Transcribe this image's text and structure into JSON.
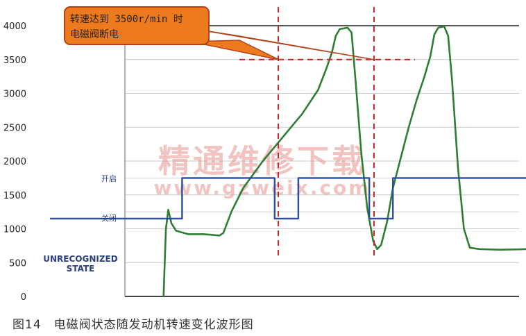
{
  "chart_data": {
    "type": "line",
    "caption": "图14　电磁阀状态随发动机转速变化波形图",
    "y_ticks": [
      0,
      500,
      1000,
      1500,
      2000,
      2500,
      3000,
      3500,
      4000
    ],
    "ylim": [
      0,
      4000
    ],
    "callout": {
      "line1": "转速达到 3500r/min 时",
      "line2": "电磁阀断电"
    },
    "state_labels": {
      "on": "开启",
      "off": "关闭",
      "unrecognized_line1": "UNRECOGNIZED",
      "unrecognized_line2": "STATE"
    },
    "watermark": {
      "line1": "精通维修下载",
      "line2": "www.gzweix.com"
    },
    "threshold_value": 3500,
    "series": [
      {
        "kind": "rpm",
        "color": "#2f7d32",
        "points": [
          [
            0.098,
            0
          ],
          [
            0.104,
            1000
          ],
          [
            0.11,
            1280
          ],
          [
            0.118,
            1080
          ],
          [
            0.13,
            970
          ],
          [
            0.16,
            920
          ],
          [
            0.2,
            920
          ],
          [
            0.24,
            900
          ],
          [
            0.25,
            940
          ],
          [
            0.27,
            1250
          ],
          [
            0.3,
            1600
          ],
          [
            0.35,
            2000
          ],
          [
            0.4,
            2350
          ],
          [
            0.45,
            2700
          ],
          [
            0.49,
            3050
          ],
          [
            0.51,
            3350
          ],
          [
            0.525,
            3600
          ],
          [
            0.535,
            3850
          ],
          [
            0.545,
            3950
          ],
          [
            0.565,
            3970
          ],
          [
            0.575,
            3900
          ],
          [
            0.585,
            3200
          ],
          [
            0.6,
            2100
          ],
          [
            0.615,
            1300
          ],
          [
            0.63,
            820
          ],
          [
            0.64,
            700
          ],
          [
            0.65,
            760
          ],
          [
            0.665,
            1100
          ],
          [
            0.68,
            1600
          ],
          [
            0.7,
            2050
          ],
          [
            0.72,
            2500
          ],
          [
            0.74,
            2900
          ],
          [
            0.76,
            3250
          ],
          [
            0.775,
            3550
          ],
          [
            0.785,
            3870
          ],
          [
            0.795,
            3970
          ],
          [
            0.81,
            3990
          ],
          [
            0.82,
            3850
          ],
          [
            0.83,
            3200
          ],
          [
            0.845,
            1900
          ],
          [
            0.86,
            1000
          ],
          [
            0.875,
            720
          ],
          [
            0.9,
            700
          ],
          [
            0.95,
            690
          ],
          [
            1.0,
            695
          ],
          [
            1.04,
            705
          ],
          [
            1.06,
            700
          ]
        ]
      },
      {
        "kind": "solenoid_state",
        "color": "#2b4ea0",
        "points": [
          [
            -0.19,
            1150
          ],
          [
            0.145,
            1150
          ],
          [
            0.145,
            1750
          ],
          [
            0.38,
            1750
          ],
          [
            0.38,
            1150
          ],
          [
            0.44,
            1150
          ],
          [
            0.44,
            1750
          ],
          [
            0.62,
            1750
          ],
          [
            0.62,
            1150
          ],
          [
            0.68,
            1150
          ],
          [
            0.68,
            1750
          ],
          [
            1.06,
            1750
          ]
        ]
      }
    ]
  }
}
